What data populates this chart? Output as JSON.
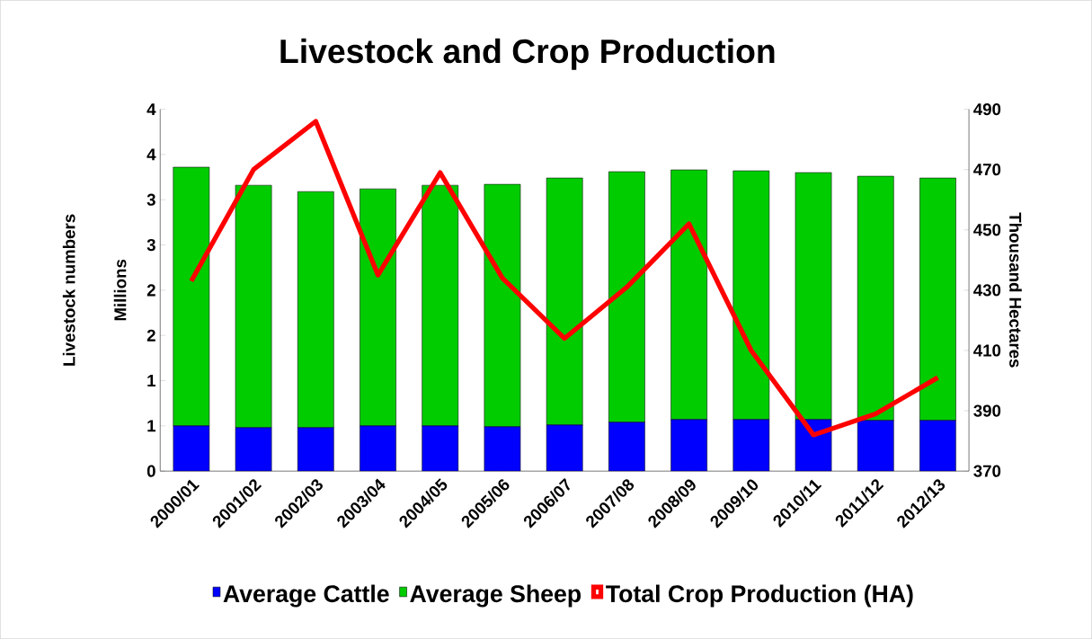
{
  "chart_data": {
    "type": "bar",
    "title": "Livestock and Crop Production",
    "ylabel": "Livestock numbers",
    "y2label": "Thousand Hectares",
    "annotations": [
      "Millions"
    ],
    "categories": [
      "2000/01",
      "2001/02",
      "2002/03",
      "2003/04",
      "2004/05",
      "2005/06",
      "2006/07",
      "2007/08",
      "2008/09",
      "2009/10",
      "2010/11",
      "2011/12",
      "2012/13"
    ],
    "stacked": true,
    "series": [
      {
        "name": "Average Cattle",
        "color": "#0000ff",
        "values": [
          0.5,
          0.48,
          0.48,
          0.5,
          0.5,
          0.49,
          0.51,
          0.54,
          0.57,
          0.57,
          0.57,
          0.56,
          0.56
        ]
      },
      {
        "name": "Average Sheep",
        "color": "#00cc00",
        "values": [
          2.86,
          2.68,
          2.61,
          2.62,
          2.66,
          2.68,
          2.73,
          2.77,
          2.76,
          2.75,
          2.73,
          2.7,
          2.68
        ]
      },
      {
        "name": "Total Crop Production (HA)",
        "type": "line",
        "axis": "y2",
        "color": "#ff0000",
        "values": [
          433,
          470,
          486,
          435,
          469,
          434,
          414,
          431,
          452,
          410,
          382,
          389,
          401
        ]
      }
    ],
    "ylim": [
      0,
      4
    ],
    "yticks": [
      0,
      {
        "value": 0.5,
        "label": "1"
      },
      1,
      {
        "value": 1.5,
        "label": "2"
      },
      2,
      {
        "value": 2.5,
        "label": "3"
      },
      3,
      {
        "value": 3.5,
        "label": "4"
      },
      4
    ],
    "y2lim": [
      370,
      490
    ],
    "y2ticks": [
      370,
      390,
      410,
      430,
      450,
      470,
      490
    ],
    "grid": false,
    "legend": "bottom",
    "marker": "none",
    "line_style": "solid"
  }
}
